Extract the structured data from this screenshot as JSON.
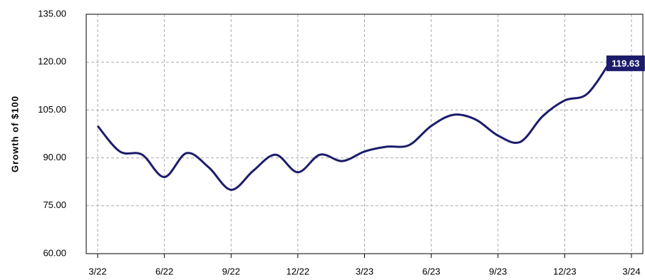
{
  "chart_data": {
    "type": "line",
    "y_label": "Growth of $100",
    "categories": [
      "3/22",
      null,
      null,
      "6/22",
      null,
      null,
      "9/22",
      null,
      null,
      "12/22",
      null,
      null,
      "3/23",
      null,
      null,
      "6/23",
      null,
      null,
      "9/23",
      null,
      null,
      "12/23",
      null,
      null,
      "3/24"
    ],
    "series": [
      {
        "color": "#1c1c6b",
        "values": [
          100,
          92,
          91,
          84,
          91.5,
          87,
          80,
          86,
          91,
          85.5,
          91,
          89,
          92,
          93.5,
          94,
          100,
          103.5,
          102,
          97,
          95,
          103,
          108,
          110,
          119.63,
          null
        ]
      }
    ],
    "end_label": 119.63,
    "ylim": [
      60,
      135
    ],
    "yticks": [
      {
        "value": 60,
        "label": "60.00"
      },
      {
        "value": 75,
        "label": "75.00"
      },
      {
        "value": 90,
        "label": "90.00"
      },
      {
        "value": 105,
        "label": "105.00"
      },
      {
        "value": 120,
        "label": "120.00"
      },
      {
        "value": 135,
        "label": "135.00"
      }
    ],
    "grid": true
  }
}
